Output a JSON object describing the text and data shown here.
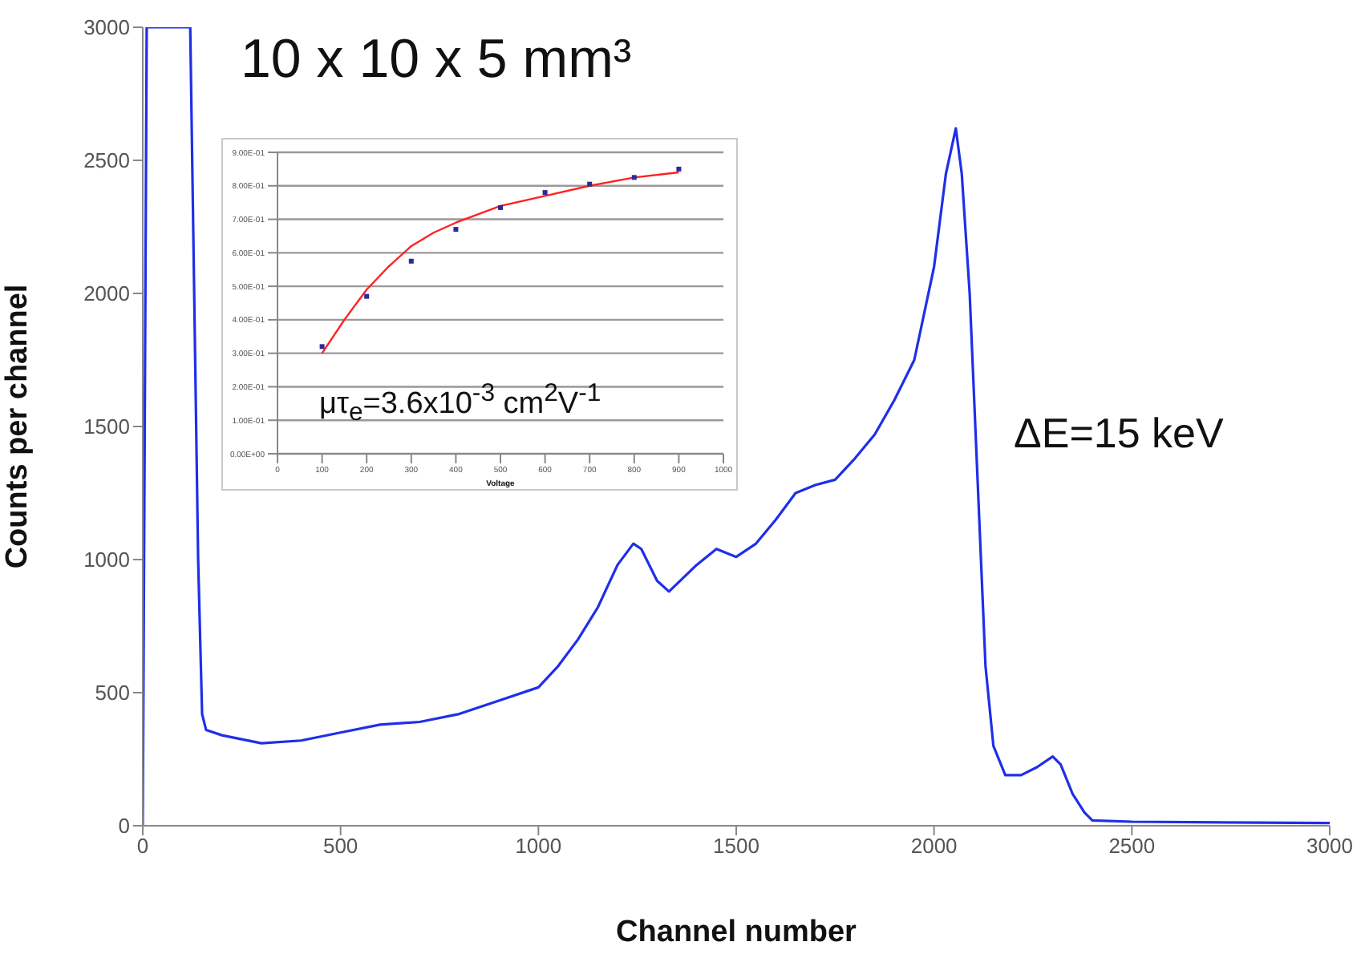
{
  "chart_data": [
    {
      "type": "line",
      "xlabel": "Channel number",
      "ylabel": "Counts per channel",
      "xlim": [
        0,
        3000
      ],
      "xticks": [
        0,
        500,
        1000,
        1500,
        2000,
        2500,
        3000
      ],
      "ylim": [
        0,
        3000
      ],
      "yticks": [
        0,
        500,
        1000,
        1500,
        2000,
        2500,
        3000
      ],
      "annotations": [
        "10 x 10 x 5 mm³",
        "ΔE=15 keV"
      ],
      "series": [
        {
          "color": "#1f2fe8",
          "x": [
            0,
            10,
            120,
            140,
            150,
            160,
            200,
            300,
            400,
            500,
            600,
            700,
            800,
            900,
            1000,
            1050,
            1100,
            1150,
            1200,
            1240,
            1260,
            1300,
            1330,
            1400,
            1450,
            1500,
            1550,
            1600,
            1650,
            1700,
            1750,
            1800,
            1850,
            1900,
            1950,
            2000,
            2030,
            2055,
            2070,
            2090,
            2110,
            2130,
            2150,
            2180,
            2220,
            2260,
            2300,
            2320,
            2350,
            2380,
            2400,
            2500,
            3000
          ],
          "values": [
            0,
            3000,
            3000,
            1000,
            420,
            360,
            340,
            310,
            320,
            350,
            380,
            390,
            420,
            470,
            520,
            600,
            700,
            820,
            980,
            1060,
            1040,
            920,
            880,
            980,
            1040,
            1010,
            1060,
            1150,
            1250,
            1280,
            1300,
            1380,
            1470,
            1600,
            1750,
            2100,
            2450,
            2620,
            2450,
            2000,
            1300,
            600,
            300,
            190,
            190,
            220,
            260,
            230,
            120,
            50,
            20,
            15,
            10
          ]
        }
      ]
    },
    {
      "type": "scatter",
      "xlabel": "Voltage",
      "grid": "y",
      "xlim": [
        0,
        1000
      ],
      "xticks": [
        0,
        100,
        200,
        300,
        400,
        500,
        600,
        700,
        800,
        900,
        1000
      ],
      "ylim": [
        0,
        0.9
      ],
      "yticks": [
        {
          "value": 0,
          "label": "0.00E+00"
        },
        {
          "value": 0.1,
          "label": "1.00E-01"
        },
        {
          "value": 0.2,
          "label": "2.00E-01"
        },
        {
          "value": 0.3,
          "label": "3.00E-01"
        },
        {
          "value": 0.4,
          "label": "4.00E-01"
        },
        {
          "value": 0.5,
          "label": "5.00E-01"
        },
        {
          "value": 0.6,
          "label": "6.00E-01"
        },
        {
          "value": 0.7,
          "label": "7.00E-01"
        },
        {
          "value": 0.8,
          "label": "8.00E-01"
        },
        {
          "value": 0.9,
          "label": "9.00E-01"
        }
      ],
      "annotations": [
        "μτ$_{e}$=3.6x10$^{-3}$ cm$^{2}$V$^{-1}$"
      ],
      "series": [
        {
          "marker": "square",
          "color": "#2a2a9a",
          "x": [
            100,
            200,
            300,
            400,
            500,
            600,
            700,
            800,
            900
          ],
          "values": [
            0.32,
            0.47,
            0.575,
            0.67,
            0.735,
            0.78,
            0.805,
            0.825,
            0.85
          ]
        },
        {
          "type": "line",
          "color": "#ff2020",
          "x": [
            100,
            150,
            200,
            250,
            300,
            350,
            400,
            500,
            600,
            700,
            800,
            900
          ],
          "values": [
            0.3,
            0.4,
            0.49,
            0.56,
            0.62,
            0.66,
            0.69,
            0.74,
            0.77,
            0.8,
            0.825,
            0.84
          ]
        }
      ]
    }
  ]
}
